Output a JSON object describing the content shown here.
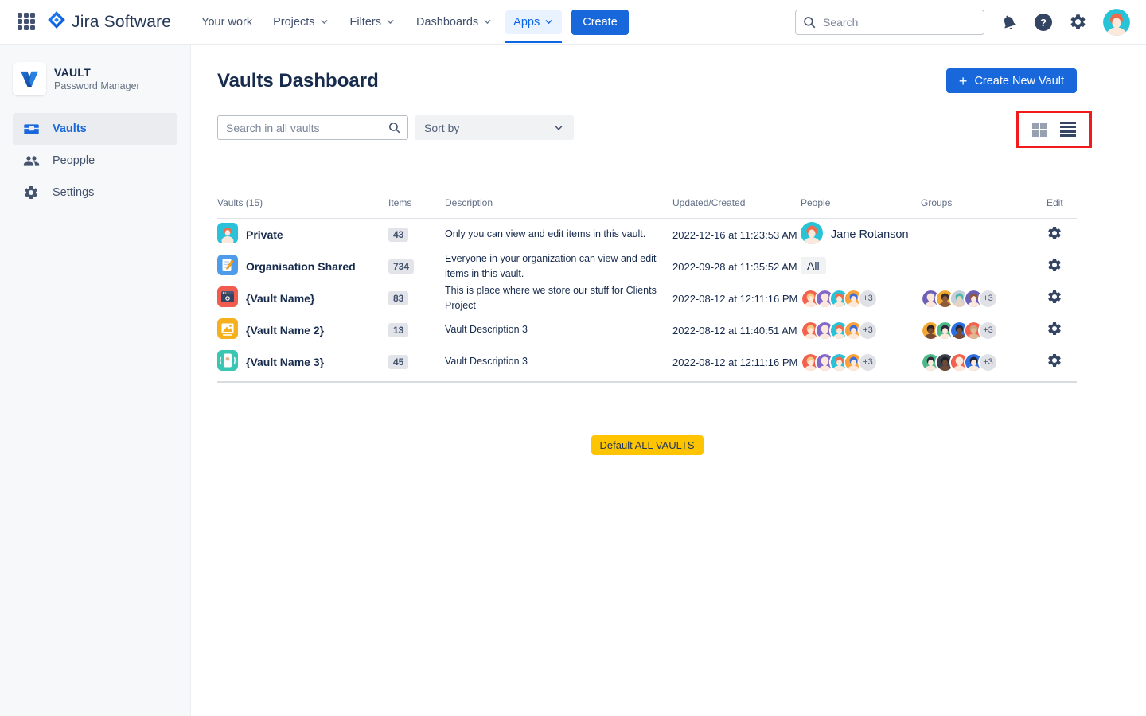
{
  "topbar": {
    "logo_text": "Jira Software",
    "nav_items": [
      {
        "label": "Your work",
        "chevron": false,
        "active": false
      },
      {
        "label": "Projects",
        "chevron": true,
        "active": false
      },
      {
        "label": "Filters",
        "chevron": true,
        "active": false
      },
      {
        "label": "Dashboards",
        "chevron": true,
        "active": false
      },
      {
        "label": "Apps",
        "chevron": true,
        "active": true
      }
    ],
    "create_label": "Create",
    "search_placeholder": "Search"
  },
  "sidebar": {
    "app_name": "VAULT",
    "app_subtitle": "Password Manager",
    "items": [
      {
        "label": "Vaults",
        "icon": "vault-icon",
        "active": true
      },
      {
        "label": "Peopple",
        "icon": "people-icon",
        "active": false
      },
      {
        "label": "Settings",
        "icon": "gear-icon",
        "active": false
      }
    ]
  },
  "main": {
    "title": "Vaults Dashboard",
    "create_button_label": "Create New Vault",
    "search_placeholder": "Search in all vaults",
    "sort_label": "Sort by",
    "default_badge_label": "Default ALL VAULTS"
  },
  "table": {
    "headers": [
      "Vaults (15)",
      "Items",
      "Description",
      "Updated/Created",
      "People",
      "Groups",
      "Edit"
    ],
    "rows": [
      {
        "name": "Private",
        "icon": {
          "type": "avatar",
          "bg": "#2BC1D8"
        },
        "items": "43",
        "description": "Only you can view and edit items in this vault.",
        "updated": "2022-12-16 at 11:23:53 AM",
        "people": {
          "type": "named",
          "name": "Jane Rotanson",
          "avatar": {
            "bg": "#29C3D7",
            "hair": "#EE6C4D",
            "skin": "#FDE8DC"
          }
        },
        "groups": {
          "type": "none"
        }
      },
      {
        "name": "Organisation Shared",
        "icon": {
          "type": "notebook",
          "bg": "#4E9BEA"
        },
        "items": "734",
        "description": "Everyone in your organization can view and edit items in this vault.",
        "updated": "2022-09-28 at 11:35:52 AM",
        "people": {
          "type": "badge",
          "label": "All"
        },
        "groups": {
          "type": "none"
        }
      },
      {
        "name": "{Vault Name}",
        "icon": {
          "type": "browser",
          "bg": "#F15B50"
        },
        "items": "83",
        "description": "This is place where we store our stuff for Clients Project",
        "updated": "2022-08-12 at 12:11:16 PM",
        "people": {
          "type": "stack",
          "more": "+3",
          "avatars": [
            {
              "bg": "#F2624D",
              "hair": "#F9C784",
              "skin": "#FDE8DC"
            },
            {
              "bg": "#8168C9",
              "hair": "#FDE8DC",
              "skin": "#FDE8DC"
            },
            {
              "bg": "#29C3D7",
              "hair": "#EE6C4D",
              "skin": "#FDE8DC"
            },
            {
              "bg": "#F9A13B",
              "hair": "#3E6FD9",
              "skin": "#FDE8DC"
            }
          ]
        },
        "groups": {
          "type": "stack",
          "more": "+3",
          "avatars": [
            {
              "bg": "#6C5FB8",
              "hair": "#FDE8DC",
              "skin": "#FDE8DC"
            },
            {
              "bg": "#F0A833",
              "hair": "#3A2E2A",
              "skin": "#8C5B3F"
            },
            {
              "bg": "#C7CFD8",
              "hair": "#4DB6AC",
              "skin": "#E8D3C3"
            },
            {
              "bg": "#6C5FB8",
              "hair": "#8C5B3F",
              "skin": "#FDE8DC"
            }
          ]
        }
      },
      {
        "name": "{Vault Name 2}",
        "icon": {
          "type": "picture",
          "bg": "#F5B01E"
        },
        "items": "13",
        "description": "Vault Description 3",
        "updated": "2022-08-12 at 11:40:51 AM",
        "people": {
          "type": "stack",
          "more": "+3",
          "avatars": [
            {
              "bg": "#F2624D",
              "hair": "#F9C784",
              "skin": "#FDE8DC"
            },
            {
              "bg": "#8168C9",
              "hair": "#FDE8DC",
              "skin": "#FDE8DC"
            },
            {
              "bg": "#29C3D7",
              "hair": "#EE6C4D",
              "skin": "#FDE8DC"
            },
            {
              "bg": "#F9A13B",
              "hair": "#3E6FD9",
              "skin": "#FDE8DC"
            }
          ]
        },
        "groups": {
          "type": "stack",
          "more": "+3",
          "avatars": [
            {
              "bg": "#F0A833",
              "hair": "#2E2222",
              "skin": "#7A4B33"
            },
            {
              "bg": "#4DB887",
              "hair": "#2E2A3A",
              "skin": "#FDE8DC"
            },
            {
              "bg": "#2D6FE0",
              "hair": "#1E2742",
              "skin": "#7A4B33"
            },
            {
              "bg": "#F2624D",
              "hair": "#C9A27E",
              "skin": "#DEB892"
            }
          ]
        }
      },
      {
        "name": "{Vault Name 3}",
        "icon": {
          "type": "phone",
          "bg": "#3AC6B3"
        },
        "items": "45",
        "description": "Vault Description 3",
        "updated": "2022-08-12 at 12:11:16 PM",
        "people": {
          "type": "stack",
          "more": "+3",
          "avatars": [
            {
              "bg": "#F2624D",
              "hair": "#F9C784",
              "skin": "#FDE8DC"
            },
            {
              "bg": "#8168C9",
              "hair": "#FDE8DC",
              "skin": "#FDE8DC"
            },
            {
              "bg": "#29C3D7",
              "hair": "#EE6C4D",
              "skin": "#FDE8DC"
            },
            {
              "bg": "#F9A13B",
              "hair": "#3E6FD9",
              "skin": "#FDE8DC"
            }
          ]
        },
        "groups": {
          "type": "stack",
          "more": "+3",
          "avatars": [
            {
              "bg": "#4DB887",
              "hair": "#2E2A3A",
              "skin": "#FDE8DC"
            },
            {
              "bg": "#3B3F4A",
              "hair": "#1E2228",
              "skin": "#6B4A36"
            },
            {
              "bg": "#F2624D",
              "hair": "#FDE8DC",
              "skin": "#FDE8DC"
            },
            {
              "bg": "#2D6FE0",
              "hair": "#23273A",
              "skin": "#FDE8DC"
            }
          ]
        }
      }
    ]
  },
  "colors": {
    "accent_blue": "#1868DB",
    "active_nav_blue": "#0C66E4",
    "annotation_red": "#F21B1B",
    "badge_yellow": "#FFC400",
    "text_navy": "#172B4D"
  }
}
